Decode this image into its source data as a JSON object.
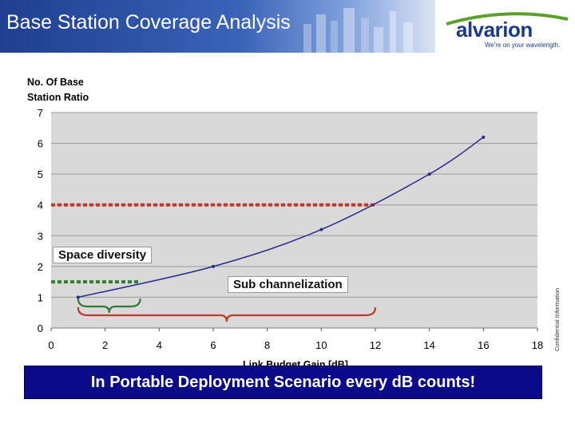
{
  "header": {
    "title": "Base Station Coverage Analysis"
  },
  "logo": {
    "name": "alvarion",
    "tagline": "We're on your wavelength."
  },
  "side_note": "Confidential Information",
  "annotations": {
    "space_diversity": "Space diversity",
    "sub_channelization": "Sub channelization"
  },
  "footer": {
    "banner": "In Portable Deployment Scenario every dB counts!"
  },
  "colors": {
    "curve": "#2a2a8f",
    "space_line": "#c0392b",
    "sub_line": "#2e7d32",
    "plot_bg": "#d9d9d9",
    "banner_bg": "#0a0a8a"
  },
  "chart_data": {
    "type": "line",
    "title": "",
    "xlabel": "Link Budget Gain [dB]",
    "ylabel_lines": [
      "No. Of Base",
      "Station Ratio"
    ],
    "xlim": [
      0,
      18
    ],
    "ylim": [
      0,
      7
    ],
    "x_ticks": [
      0,
      2,
      4,
      6,
      8,
      10,
      12,
      14,
      16,
      18
    ],
    "y_ticks": [
      0,
      1,
      2,
      3,
      4,
      5,
      6,
      7
    ],
    "grid": true,
    "series": [
      {
        "x": [
          1,
          6,
          10,
          14,
          16
        ],
        "y": [
          1.0,
          2.0,
          3.2,
          5.0,
          6.2
        ]
      }
    ],
    "reference_lines": [
      {
        "kind": "dashed-horizontal",
        "color": "red",
        "y": 4.0,
        "x_from": 0,
        "x_to": 12
      },
      {
        "kind": "dashed-horizontal",
        "color": "green",
        "y": 1.5,
        "x_from": 0,
        "x_to": 3.3
      }
    ],
    "braces": [
      {
        "color": "green",
        "x_from": 1,
        "x_to": 3.3
      },
      {
        "color": "red",
        "x_from": 1,
        "x_to": 12
      }
    ]
  }
}
